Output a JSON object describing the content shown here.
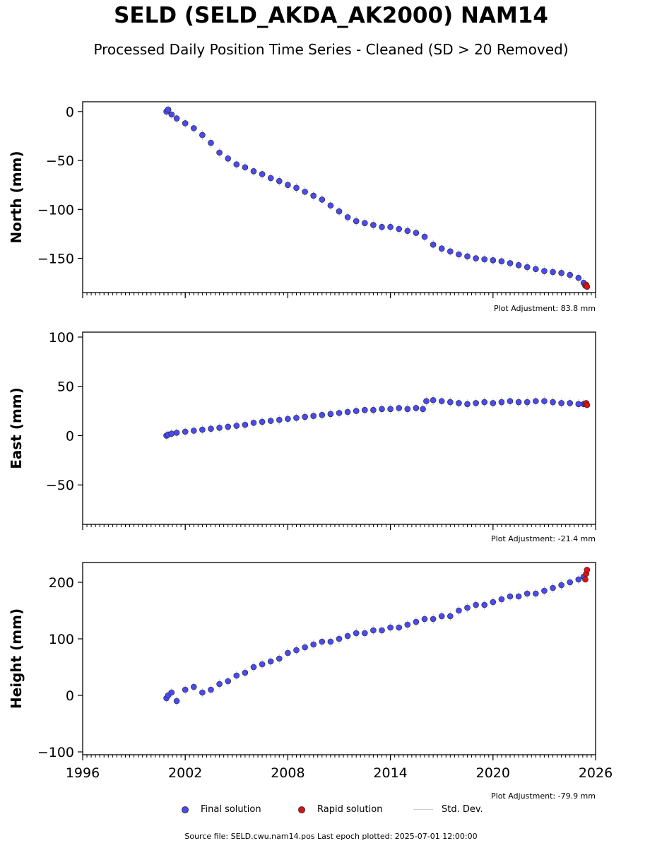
{
  "title": "SELD (SELD_AKDA_AK2000) NAM14",
  "subtitle": "Processed Daily Position Time Series - Cleaned (SD > 20 Removed)",
  "colors": {
    "final": "#4a4af0",
    "rapid": "#e01010",
    "stddev": "#cccccc",
    "edge": "#222222"
  },
  "legend": {
    "final_label": "Final solution",
    "rapid_label": "Rapid solution",
    "stddev_label": "Std. Dev."
  },
  "footer": "Source file: SELD.cwu.nam14.pos  Last epoch plotted: 2025-07-01 12:00:00",
  "chart_data": [
    {
      "type": "scatter",
      "ylabel": "North (mm)",
      "xlim": [
        1996,
        2026
      ],
      "ylim": [
        -185,
        10
      ],
      "yticks": [
        0,
        -50,
        -100,
        -150
      ],
      "adjustment": "Plot Adjustment: 83.8 mm",
      "series": [
        {
          "name": "Final solution",
          "x": [
            2000.9,
            2001.0,
            2001.2,
            2001.5,
            2002.0,
            2002.5,
            2003.0,
            2003.5,
            2004.0,
            2004.5,
            2005.0,
            2005.5,
            2006.0,
            2006.5,
            2007.0,
            2007.5,
            2008.0,
            2008.5,
            2009.0,
            2009.5,
            2010.0,
            2010.5,
            2011.0,
            2011.5,
            2012.0,
            2012.5,
            2013.0,
            2013.5,
            2014.0,
            2014.5,
            2015.0,
            2015.5,
            2016.0,
            2016.5,
            2017.0,
            2017.5,
            2018.0,
            2018.5,
            2019.0,
            2019.5,
            2020.0,
            2020.5,
            2021.0,
            2021.5,
            2022.0,
            2022.5,
            2023.0,
            2023.5,
            2024.0,
            2024.5,
            2025.0,
            2025.3
          ],
          "y": [
            0,
            2,
            -3,
            -7,
            -12,
            -17,
            -24,
            -32,
            -42,
            -48,
            -54,
            -57,
            -61,
            -64,
            -68,
            -71,
            -75,
            -78,
            -82,
            -86,
            -90,
            -96,
            -102,
            -108,
            -112,
            -114,
            -116,
            -118,
            -118,
            -120,
            -122,
            -124,
            -128,
            -136,
            -140,
            -143,
            -146,
            -148,
            -150,
            -151,
            -152,
            -153,
            -155,
            -157,
            -159,
            -161,
            -163,
            -164,
            -165,
            -167,
            -170,
            -175
          ]
        },
        {
          "name": "Rapid solution",
          "x": [
            2025.4,
            2025.45,
            2025.5
          ],
          "y": [
            -178,
            -177,
            -179
          ]
        }
      ]
    },
    {
      "type": "scatter",
      "ylabel": "East (mm)",
      "xlim": [
        1996,
        2026
      ],
      "ylim": [
        -90,
        105
      ],
      "yticks": [
        100,
        50,
        0,
        -50
      ],
      "adjustment": "Plot Adjustment: -21.4 mm",
      "series": [
        {
          "name": "Final solution",
          "x": [
            2000.9,
            2001.0,
            2001.2,
            2001.5,
            2002.0,
            2002.5,
            2003.0,
            2003.5,
            2004.0,
            2004.5,
            2005.0,
            2005.5,
            2006.0,
            2006.5,
            2007.0,
            2007.5,
            2008.0,
            2008.5,
            2009.0,
            2009.5,
            2010.0,
            2010.5,
            2011.0,
            2011.5,
            2012.0,
            2012.5,
            2013.0,
            2013.5,
            2014.0,
            2014.5,
            2015.0,
            2015.5,
            2015.9,
            2016.1,
            2016.5,
            2017.0,
            2017.5,
            2018.0,
            2018.5,
            2019.0,
            2019.5,
            2020.0,
            2020.5,
            2021.0,
            2021.5,
            2022.0,
            2022.5,
            2023.0,
            2023.5,
            2024.0,
            2024.5,
            2025.0,
            2025.3
          ],
          "y": [
            0,
            1,
            2,
            3,
            4,
            5,
            6,
            7,
            8,
            9,
            10,
            11,
            13,
            14,
            15,
            16,
            17,
            18,
            19,
            20,
            21,
            22,
            23,
            24,
            25,
            26,
            26,
            27,
            27,
            28,
            27,
            28,
            27,
            35,
            36,
            35,
            34,
            33,
            32,
            33,
            34,
            33,
            34,
            35,
            34,
            34,
            35,
            35,
            34,
            33,
            33,
            32,
            32
          ]
        },
        {
          "name": "Rapid solution",
          "x": [
            2025.4,
            2025.45,
            2025.5
          ],
          "y": [
            32,
            33,
            31
          ]
        }
      ]
    },
    {
      "type": "scatter",
      "ylabel": "Height (mm)",
      "xlim": [
        1996,
        2026
      ],
      "ylim": [
        -105,
        235
      ],
      "yticks": [
        200,
        100,
        0,
        -100
      ],
      "xticks": [
        1996,
        2002,
        2008,
        2014,
        2020,
        2026
      ],
      "adjustment": "Plot Adjustment: -79.9 mm",
      "series": [
        {
          "name": "Final solution",
          "x": [
            2000.9,
            2001.0,
            2001.2,
            2001.5,
            2002.0,
            2002.5,
            2003.0,
            2003.5,
            2004.0,
            2004.5,
            2005.0,
            2005.5,
            2006.0,
            2006.5,
            2007.0,
            2007.5,
            2008.0,
            2008.5,
            2009.0,
            2009.5,
            2010.0,
            2010.5,
            2011.0,
            2011.5,
            2012.0,
            2012.5,
            2013.0,
            2013.5,
            2014.0,
            2014.5,
            2015.0,
            2015.5,
            2016.0,
            2016.5,
            2017.0,
            2017.5,
            2018.0,
            2018.5,
            2019.0,
            2019.5,
            2020.0,
            2020.5,
            2021.0,
            2021.5,
            2022.0,
            2022.5,
            2023.0,
            2023.5,
            2024.0,
            2024.5,
            2025.0,
            2025.3
          ],
          "y": [
            -5,
            0,
            5,
            -10,
            10,
            15,
            5,
            10,
            20,
            25,
            35,
            40,
            50,
            55,
            60,
            65,
            75,
            80,
            85,
            90,
            95,
            95,
            100,
            105,
            110,
            110,
            115,
            115,
            120,
            120,
            125,
            130,
            135,
            135,
            140,
            140,
            150,
            155,
            160,
            160,
            165,
            170,
            175,
            175,
            180,
            180,
            185,
            190,
            195,
            200,
            205,
            210
          ]
        },
        {
          "name": "Rapid solution",
          "x": [
            2025.4,
            2025.45,
            2025.5
          ],
          "y": [
            205,
            215,
            222
          ]
        }
      ]
    }
  ]
}
